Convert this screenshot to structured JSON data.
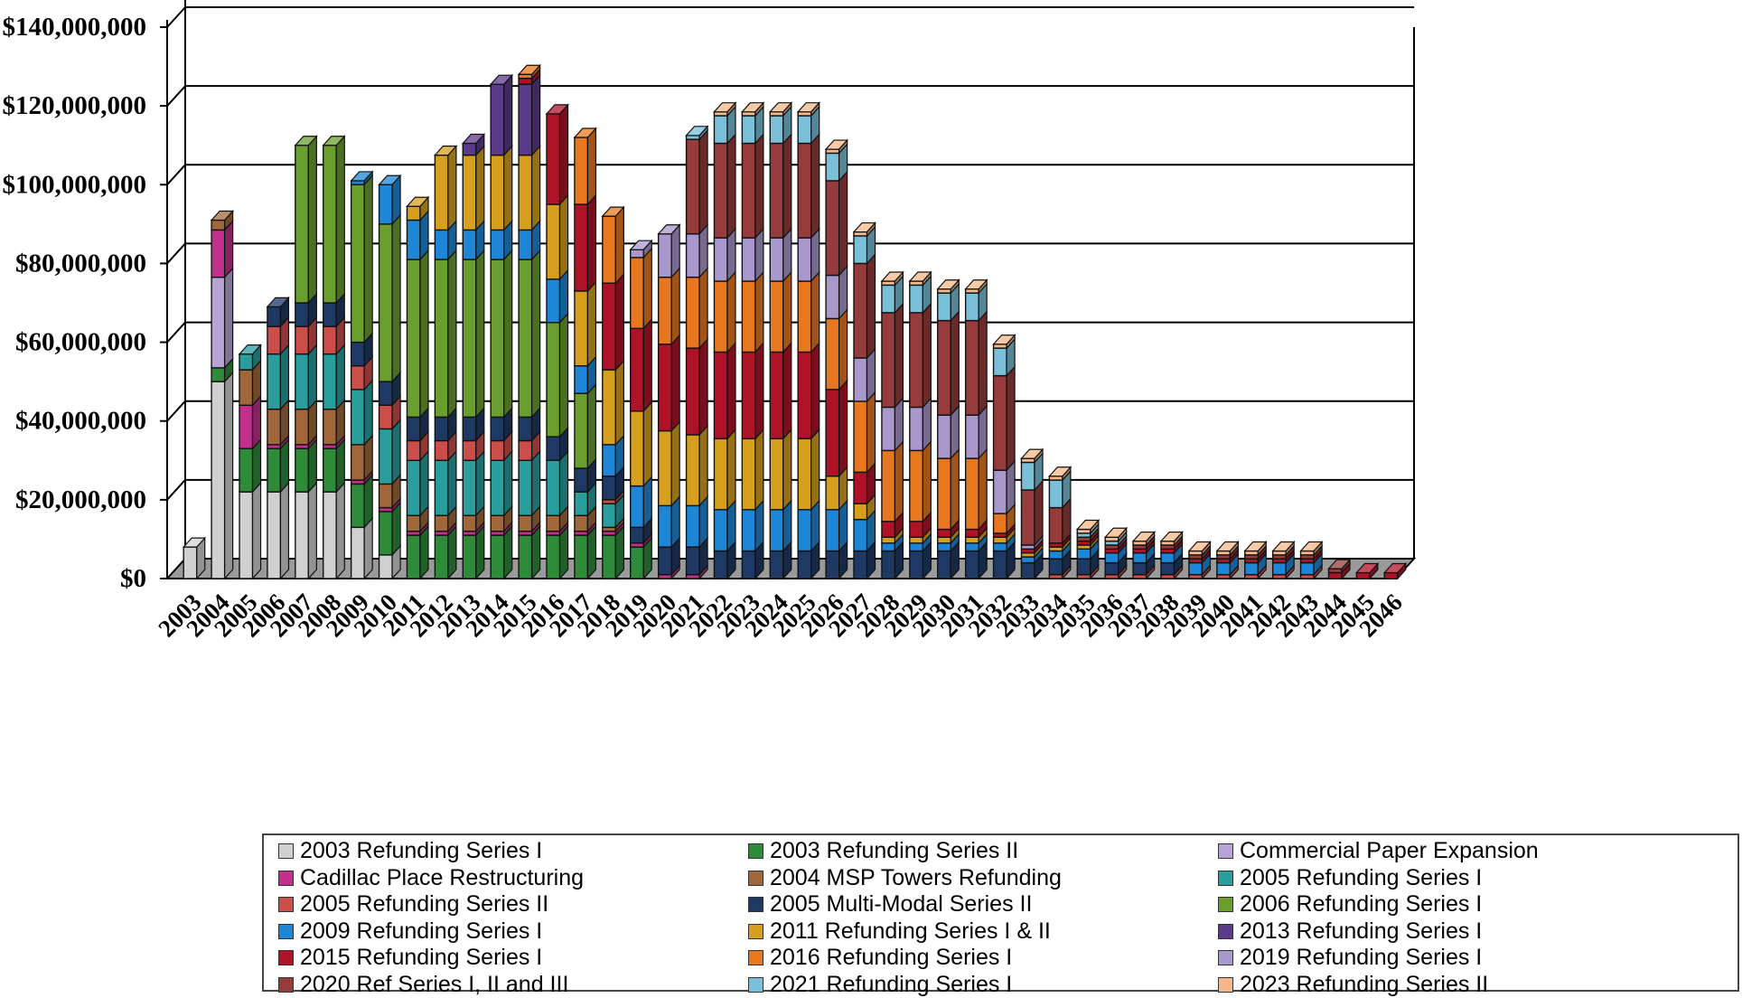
{
  "chart_data": {
    "type": "bar",
    "stacked": true,
    "ylim": [
      0,
      140000000
    ],
    "y_ticks": [
      "$0",
      "$20,000,000",
      "$40,000,000",
      "$60,000,000",
      "$80,000,000",
      "$100,000,000",
      "$120,000,000",
      "$140,000,000"
    ],
    "categories": [
      "2003",
      "2004",
      "2005",
      "2006",
      "2007",
      "2008",
      "2009",
      "2010",
      "2011",
      "2012",
      "2013",
      "2014",
      "2015",
      "2016",
      "2017",
      "2018",
      "2019",
      "2020",
      "2021",
      "2022",
      "2023",
      "2024",
      "2025",
      "2026",
      "2027",
      "2028",
      "2029",
      "2030",
      "2031",
      "2032",
      "2033",
      "2034",
      "2035",
      "2036",
      "2037",
      "2038",
      "2039",
      "2040",
      "2041",
      "2042",
      "2043",
      "2044",
      "2045",
      "2046"
    ],
    "grid": true,
    "legend_position": "bottom",
    "series": [
      {
        "name": "2003 Refunding Series I",
        "color": "#d0d0d0",
        "values": [
          8000000,
          50000000,
          22000000,
          22000000,
          22000000,
          22000000,
          13000000,
          6000000,
          0,
          0,
          0,
          0,
          0,
          0,
          0,
          0,
          0,
          0,
          0,
          0,
          0,
          0,
          0,
          0,
          0,
          0,
          0,
          0,
          0,
          0,
          0,
          0,
          0,
          0,
          0,
          0,
          0,
          0,
          0,
          0,
          0,
          0,
          0,
          0
        ]
      },
      {
        "name": "2003 Refunding Series II",
        "color": "#2e8b3a",
        "values": [
          0,
          3500000,
          11000000,
          11000000,
          11000000,
          11000000,
          11000000,
          11000000,
          11000000,
          11000000,
          11000000,
          11000000,
          11000000,
          11000000,
          11000000,
          11000000,
          8000000,
          0,
          0,
          0,
          0,
          0,
          0,
          0,
          0,
          0,
          0,
          0,
          0,
          0,
          0,
          0,
          0,
          0,
          0,
          0,
          0,
          0,
          0,
          0,
          0,
          0,
          0,
          0
        ]
      },
      {
        "name": "Commercial Paper Expansion",
        "color": "#b8a3d8",
        "values": [
          0,
          23000000,
          0,
          0,
          0,
          0,
          0,
          0,
          0,
          0,
          0,
          0,
          0,
          0,
          0,
          0,
          0,
          0,
          0,
          0,
          0,
          0,
          0,
          0,
          0,
          0,
          0,
          0,
          0,
          0,
          0,
          0,
          0,
          0,
          0,
          0,
          0,
          0,
          0,
          0,
          0,
          0,
          0,
          0
        ]
      },
      {
        "name": "Cadillac Place Restructuring",
        "color": "#c0308c",
        "values": [
          0,
          12000000,
          11000000,
          1000000,
          1000000,
          1000000,
          1000000,
          1000000,
          1000000,
          1000000,
          1000000,
          1000000,
          1000000,
          1000000,
          1000000,
          1000000,
          1000000,
          1000000,
          1000000,
          0,
          0,
          0,
          0,
          0,
          0,
          0,
          0,
          0,
          0,
          0,
          0,
          0,
          0,
          0,
          0,
          0,
          0,
          0,
          0,
          0,
          0,
          0,
          0,
          0
        ]
      },
      {
        "name": "2004 MSP Towers Refunding",
        "color": "#a0683a",
        "values": [
          0,
          2500000,
          9000000,
          9000000,
          9000000,
          9000000,
          9000000,
          6000000,
          4000000,
          4000000,
          4000000,
          4000000,
          4000000,
          4000000,
          4000000,
          1000000,
          0,
          0,
          0,
          0,
          0,
          0,
          0,
          0,
          0,
          0,
          0,
          0,
          0,
          0,
          0,
          0,
          0,
          0,
          0,
          0,
          0,
          0,
          0,
          0,
          0,
          0,
          0,
          0
        ]
      },
      {
        "name": "2005 Refunding Series I",
        "color": "#2a9d9d",
        "values": [
          0,
          0,
          4000000,
          14000000,
          14000000,
          14000000,
          14000000,
          14000000,
          14000000,
          14000000,
          14000000,
          14000000,
          14000000,
          14000000,
          6000000,
          6000000,
          0,
          0,
          0,
          0,
          0,
          0,
          0,
          0,
          0,
          0,
          0,
          0,
          0,
          0,
          0,
          0,
          0,
          0,
          0,
          0,
          0,
          0,
          0,
          0,
          0,
          0,
          0,
          0
        ]
      },
      {
        "name": "2005 Refunding Series II",
        "color": "#cc4e4a",
        "values": [
          0,
          0,
          0,
          7000000,
          7000000,
          7000000,
          6000000,
          6000000,
          5000000,
          5000000,
          5000000,
          5000000,
          5000000,
          0,
          0,
          1000000,
          0,
          0,
          0,
          0,
          0,
          0,
          0,
          0,
          0,
          0,
          0,
          0,
          0,
          0,
          0,
          1000000,
          1000000,
          1000000,
          1000000,
          1000000,
          1000000,
          1000000,
          1000000,
          1000000,
          1000000,
          0,
          0,
          0
        ]
      },
      {
        "name": "2005 Multi-Modal Series II",
        "color": "#1e3a64",
        "values": [
          0,
          0,
          0,
          5000000,
          6000000,
          6000000,
          6000000,
          6000000,
          6000000,
          6000000,
          6000000,
          6000000,
          6000000,
          6000000,
          6000000,
          6000000,
          4000000,
          7000000,
          7000000,
          7000000,
          7000000,
          7000000,
          7000000,
          7000000,
          7000000,
          7000000,
          7000000,
          7000000,
          7000000,
          7000000,
          4000000,
          4000000,
          4000000,
          3000000,
          3000000,
          3000000,
          0,
          0,
          0,
          0,
          0,
          0,
          0,
          0
        ]
      },
      {
        "name": "2006 Refunding Series I",
        "color": "#6a9e2e",
        "values": [
          0,
          0,
          0,
          0,
          40000000,
          40000000,
          40000000,
          40000000,
          40000000,
          40000000,
          40000000,
          40000000,
          40000000,
          29000000,
          19000000,
          0,
          0,
          0,
          0,
          0,
          0,
          0,
          0,
          0,
          0,
          0,
          0,
          0,
          0,
          0,
          0,
          0,
          0,
          0,
          0,
          0,
          0,
          0,
          0,
          0,
          0,
          0,
          0,
          0
        ]
      },
      {
        "name": "2009 Refunding Series I",
        "color": "#1e86d6",
        "values": [
          0,
          0,
          0,
          0,
          0,
          0,
          1000000,
          10000000,
          10000000,
          7500000,
          7500000,
          7500000,
          7500000,
          11000000,
          7000000,
          8000000,
          10500000,
          10500000,
          10500000,
          10500000,
          10500000,
          10500000,
          10500000,
          10500000,
          8000000,
          2000000,
          2000000,
          2000000,
          2000000,
          2000000,
          1500000,
          2000000,
          2500000,
          2500000,
          2500000,
          2500000,
          3000000,
          3000000,
          3000000,
          3000000,
          3000000,
          0,
          0,
          0
        ]
      },
      {
        "name": "2011 Refunding Series I & II",
        "color": "#d6a01e",
        "values": [
          0,
          0,
          0,
          0,
          0,
          0,
          0,
          0,
          3500000,
          19000000,
          19000000,
          19000000,
          19000000,
          19000000,
          19000000,
          19000000,
          19000000,
          19000000,
          18000000,
          18000000,
          18000000,
          18000000,
          18000000,
          8500000,
          4000000,
          1500000,
          1500000,
          1500000,
          1500000,
          1500000,
          1000000,
          1000000,
          1000000,
          0,
          0,
          0,
          0,
          0,
          0,
          0,
          0,
          0,
          0,
          0
        ]
      },
      {
        "name": "2013 Refunding Series I",
        "color": "#5c3a8a",
        "values": [
          0,
          0,
          0,
          0,
          0,
          0,
          0,
          0,
          0,
          0,
          3000000,
          18000000,
          18000000,
          0,
          0,
          0,
          0,
          0,
          0,
          0,
          0,
          0,
          0,
          0,
          0,
          0,
          0,
          0,
          0,
          0,
          0,
          0,
          0,
          0,
          0,
          0,
          0,
          0,
          0,
          0,
          0,
          0,
          0,
          0
        ]
      },
      {
        "name": "2015 Refunding Series I",
        "color": "#b01228",
        "values": [
          0,
          0,
          0,
          0,
          0,
          0,
          0,
          0,
          0,
          0,
          0,
          0,
          1500000,
          23000000,
          22000000,
          22000000,
          21000000,
          22000000,
          22000000,
          22000000,
          22000000,
          22000000,
          22000000,
          22000000,
          8000000,
          4000000,
          4000000,
          2000000,
          2000000,
          1000000,
          1000000,
          1000000,
          1000000,
          1000000,
          1000000,
          1000000,
          1000000,
          1000000,
          1000000,
          1000000,
          1000000,
          1500000,
          1500000,
          1500000
        ]
      },
      {
        "name": "2016 Refunding Series I",
        "color": "#e87820",
        "values": [
          0,
          0,
          0,
          0,
          0,
          0,
          0,
          0,
          0,
          0,
          0,
          0,
          1000000,
          0,
          17000000,
          17000000,
          18000000,
          17000000,
          18000000,
          18000000,
          18000000,
          18000000,
          18000000,
          18000000,
          18000000,
          18000000,
          18000000,
          18000000,
          18000000,
          5000000,
          0,
          0,
          0,
          0,
          0,
          0,
          0,
          0,
          0,
          0,
          0,
          0,
          0,
          0
        ]
      },
      {
        "name": "2019 Refunding Series I",
        "color": "#a898cc",
        "values": [
          0,
          0,
          0,
          0,
          0,
          0,
          0,
          0,
          0,
          0,
          0,
          0,
          0,
          0,
          0,
          0,
          2000000,
          11000000,
          11000000,
          11000000,
          11000000,
          11000000,
          11000000,
          11000000,
          11000000,
          11000000,
          11000000,
          11000000,
          11000000,
          11000000,
          1000000,
          0,
          0,
          0,
          0,
          0,
          0,
          0,
          0,
          0,
          0,
          0,
          0,
          0
        ]
      },
      {
        "name": "2020 Ref Series I, II and III",
        "color": "#963c3c",
        "values": [
          0,
          0,
          0,
          0,
          0,
          0,
          0,
          0,
          0,
          0,
          0,
          0,
          0,
          0,
          0,
          0,
          0,
          0,
          24000000,
          24000000,
          24000000,
          24000000,
          24000000,
          24000000,
          24000000,
          24000000,
          24000000,
          24000000,
          24000000,
          24000000,
          14000000,
          9000000,
          1000000,
          1000000,
          1000000,
          1000000,
          1000000,
          1000000,
          1000000,
          1000000,
          1000000,
          1000000,
          0,
          0
        ]
      },
      {
        "name": "2021 Refunding Series I",
        "color": "#7ac0d8",
        "values": [
          0,
          0,
          0,
          0,
          0,
          0,
          0,
          0,
          0,
          0,
          0,
          0,
          0,
          0,
          0,
          0,
          0,
          0,
          1000000,
          7000000,
          7000000,
          7000000,
          7000000,
          7000000,
          7000000,
          7000000,
          7000000,
          7000000,
          7000000,
          7000000,
          7000000,
          7000000,
          1000000,
          1000000,
          0,
          0,
          0,
          0,
          0,
          0,
          0,
          0,
          0,
          0
        ]
      },
      {
        "name": "2023 Refunding Series II",
        "color": "#f4b88a",
        "values": [
          0,
          0,
          0,
          0,
          0,
          0,
          0,
          0,
          0,
          0,
          0,
          0,
          0,
          0,
          0,
          0,
          0,
          0,
          0,
          1000000,
          1000000,
          1000000,
          1000000,
          1000000,
          1000000,
          1000000,
          1000000,
          1000000,
          1000000,
          1000000,
          1000000,
          1000000,
          1000000,
          1000000,
          1000000,
          1000000,
          1000000,
          1000000,
          1000000,
          1000000,
          1000000,
          0,
          0,
          0
        ]
      }
    ]
  }
}
